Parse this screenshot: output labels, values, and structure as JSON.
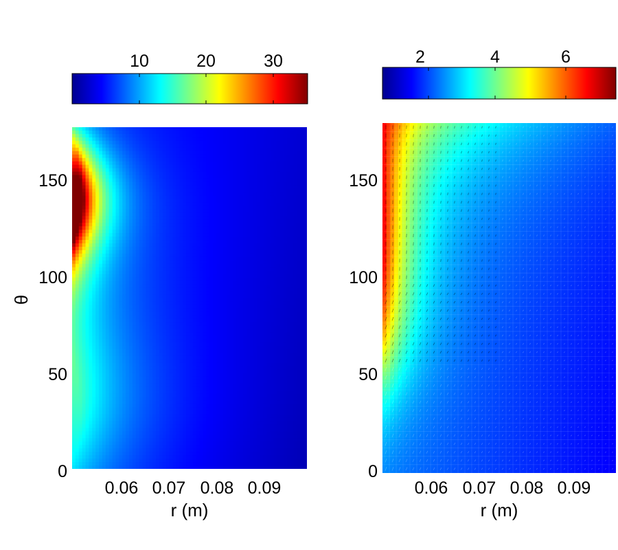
{
  "chart_data": [
    {
      "type": "heatmap",
      "title": "",
      "xlabel": "r (m)",
      "ylabel": "θ",
      "xlim": [
        0.052,
        0.1
      ],
      "ylim": [
        0,
        176
      ],
      "xticks": [
        "0.06",
        "0.07",
        "0.08",
        "0.09"
      ],
      "yticks": [
        "0",
        "50",
        "100",
        "150"
      ],
      "colormap": "jet",
      "colorbar": {
        "placement": "top",
        "range": [
          0.8,
          35.5
        ],
        "ticks": [
          "10",
          "20",
          "30"
        ]
      },
      "field": {
        "peak_value": 35.5,
        "peak_r": 0.052,
        "peak_theta": 135,
        "min_value": 0.8,
        "min_location": "bottom-right"
      },
      "grid": false
    },
    {
      "type": "heatmap",
      "title": "",
      "xlabel": "r (m)",
      "ylabel": "",
      "xlim": [
        0.052,
        0.1
      ],
      "ylim": [
        0,
        178
      ],
      "xticks": [
        "0.06",
        "0.07",
        "0.08",
        "0.09"
      ],
      "yticks": [
        "0",
        "50",
        "100",
        "150"
      ],
      "colormap": "jet",
      "colorbar": {
        "placement": "top",
        "range": [
          0.3,
          7.4
        ],
        "ticks": [
          "2",
          "4",
          "6"
        ]
      },
      "field": {
        "peak_value": 7.4,
        "peak_r": 0.052,
        "peak_theta": 115,
        "min_value": 0.3,
        "min_location": "bottom-right"
      },
      "overlay": "quiver vectors with mesh grid",
      "grid": true
    }
  ]
}
